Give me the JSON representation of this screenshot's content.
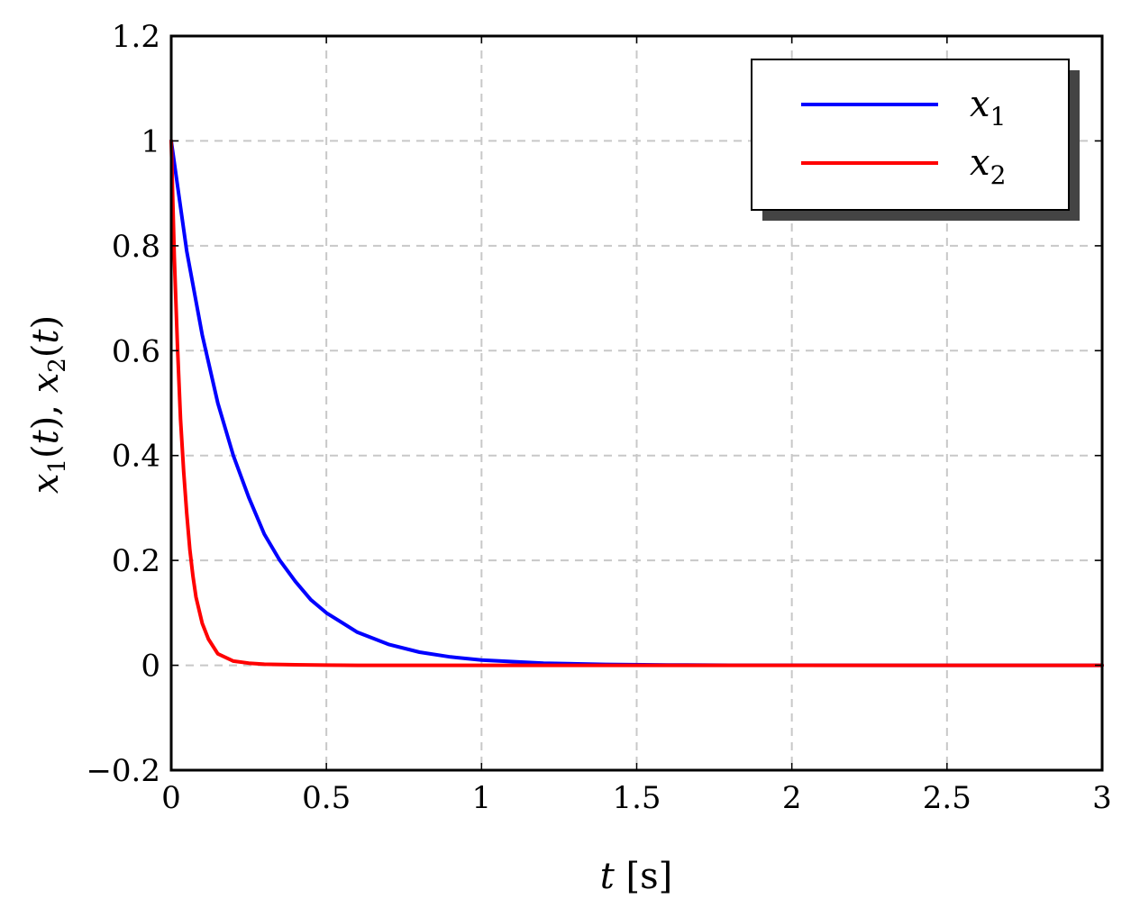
{
  "chart_data": {
    "type": "line",
    "xlabel": "t [s]",
    "ylabel": "x1(t), x2(t)",
    "xlim": [
      0,
      3
    ],
    "ylim": [
      -0.2,
      1.2
    ],
    "grid": true,
    "legend_position": "top-right",
    "x_ticks": [
      0,
      0.5,
      1,
      1.5,
      2,
      2.5,
      3
    ],
    "x_tick_labels": [
      "0",
      "0.5",
      "1",
      "1.5",
      "2",
      "2.5",
      "3"
    ],
    "y_ticks": [
      -0.2,
      0,
      0.2,
      0.4,
      0.6,
      0.8,
      1,
      1.2
    ],
    "y_tick_labels": [
      "−0.2",
      "0",
      "0.2",
      "0.4",
      "0.6",
      "0.8",
      "1",
      "1.2"
    ],
    "series": [
      {
        "name": "x1",
        "color": "#0000ff",
        "x": [
          0,
          0.05,
          0.1,
          0.15,
          0.2,
          0.25,
          0.3,
          0.35,
          0.4,
          0.45,
          0.5,
          0.6,
          0.7,
          0.8,
          0.9,
          1.0,
          1.2,
          1.4,
          1.6,
          1.8,
          2.0,
          2.5,
          3.0
        ],
        "y": [
          1.0,
          0.79,
          0.63,
          0.5,
          0.4,
          0.32,
          0.25,
          0.2,
          0.16,
          0.125,
          0.1,
          0.063,
          0.04,
          0.025,
          0.016,
          0.01,
          0.004,
          0.0016,
          0.0006,
          0.0002,
          0.0001,
          0.0,
          0.0
        ]
      },
      {
        "name": "x2",
        "color": "#ff0000",
        "x": [
          0,
          0.01,
          0.02,
          0.03,
          0.04,
          0.05,
          0.06,
          0.07,
          0.08,
          0.1,
          0.12,
          0.15,
          0.2,
          0.25,
          0.3,
          0.4,
          0.5,
          0.6,
          1.0,
          2.0,
          3.0
        ],
        "y": [
          1.0,
          0.78,
          0.61,
          0.47,
          0.37,
          0.29,
          0.22,
          0.17,
          0.13,
          0.08,
          0.05,
          0.022,
          0.008,
          0.004,
          0.002,
          0.001,
          0.0003,
          0.0,
          0.0,
          0.0,
          0.0
        ]
      }
    ]
  }
}
